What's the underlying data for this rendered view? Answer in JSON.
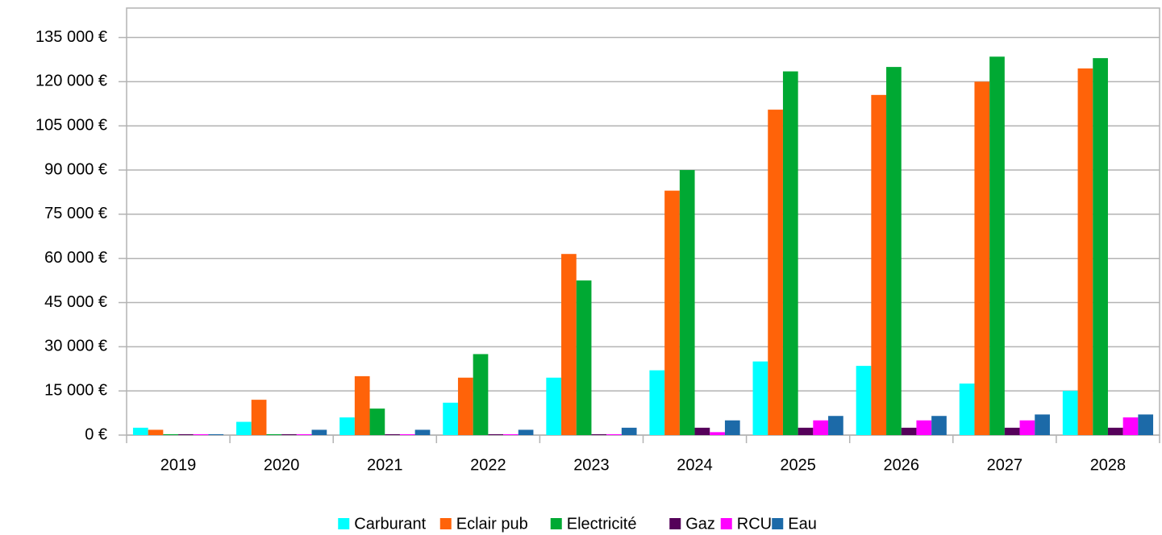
{
  "chart_data": {
    "type": "bar",
    "categories": [
      "2019",
      "2020",
      "2021",
      "2022",
      "2023",
      "2024",
      "2025",
      "2026",
      "2027",
      "2028"
    ],
    "series": [
      {
        "name": "Carburant",
        "color": "#00ffff",
        "values": [
          2500,
          4500,
          6000,
          11000,
          19500,
          22000,
          25000,
          23500,
          17500,
          15000
        ]
      },
      {
        "name": "Eclair pub",
        "color": "#ff6309",
        "values": [
          1800,
          12000,
          20000,
          19500,
          61500,
          83000,
          110500,
          115500,
          120000,
          124500
        ]
      },
      {
        "name": "Electricité",
        "color": "#00a933",
        "values": [
          300,
          300,
          9000,
          27500,
          52500,
          90000,
          123500,
          125000,
          128500,
          128000
        ]
      },
      {
        "name": "Gaz",
        "color": "#55005a",
        "values": [
          300,
          300,
          300,
          300,
          300,
          2500,
          2500,
          2500,
          2500,
          2500
        ]
      },
      {
        "name": "RCU",
        "color": "#ff00ff",
        "values": [
          300,
          300,
          300,
          300,
          300,
          1000,
          5000,
          5000,
          5000,
          6000
        ]
      },
      {
        "name": "Eau",
        "color": "#1c6aa8",
        "values": [
          300,
          1800,
          1800,
          1800,
          2500,
          5000,
          6500,
          6500,
          7000,
          7000
        ]
      }
    ],
    "ylim": [
      0,
      145000
    ],
    "yticks": [
      {
        "value": 0,
        "label": "0 €"
      },
      {
        "value": 15000,
        "label": "15 000 €"
      },
      {
        "value": 30000,
        "label": "30 000 €"
      },
      {
        "value": 45000,
        "label": "45 000 €"
      },
      {
        "value": 60000,
        "label": "60 000 €"
      },
      {
        "value": 75000,
        "label": "75 000 €"
      },
      {
        "value": 90000,
        "label": "90 000 €"
      },
      {
        "value": 105000,
        "label": "105 000 €"
      },
      {
        "value": 120000,
        "label": "120 000 €"
      },
      {
        "value": 135000,
        "label": "135 000 €"
      }
    ],
    "grid": true,
    "legend": "bottom"
  }
}
